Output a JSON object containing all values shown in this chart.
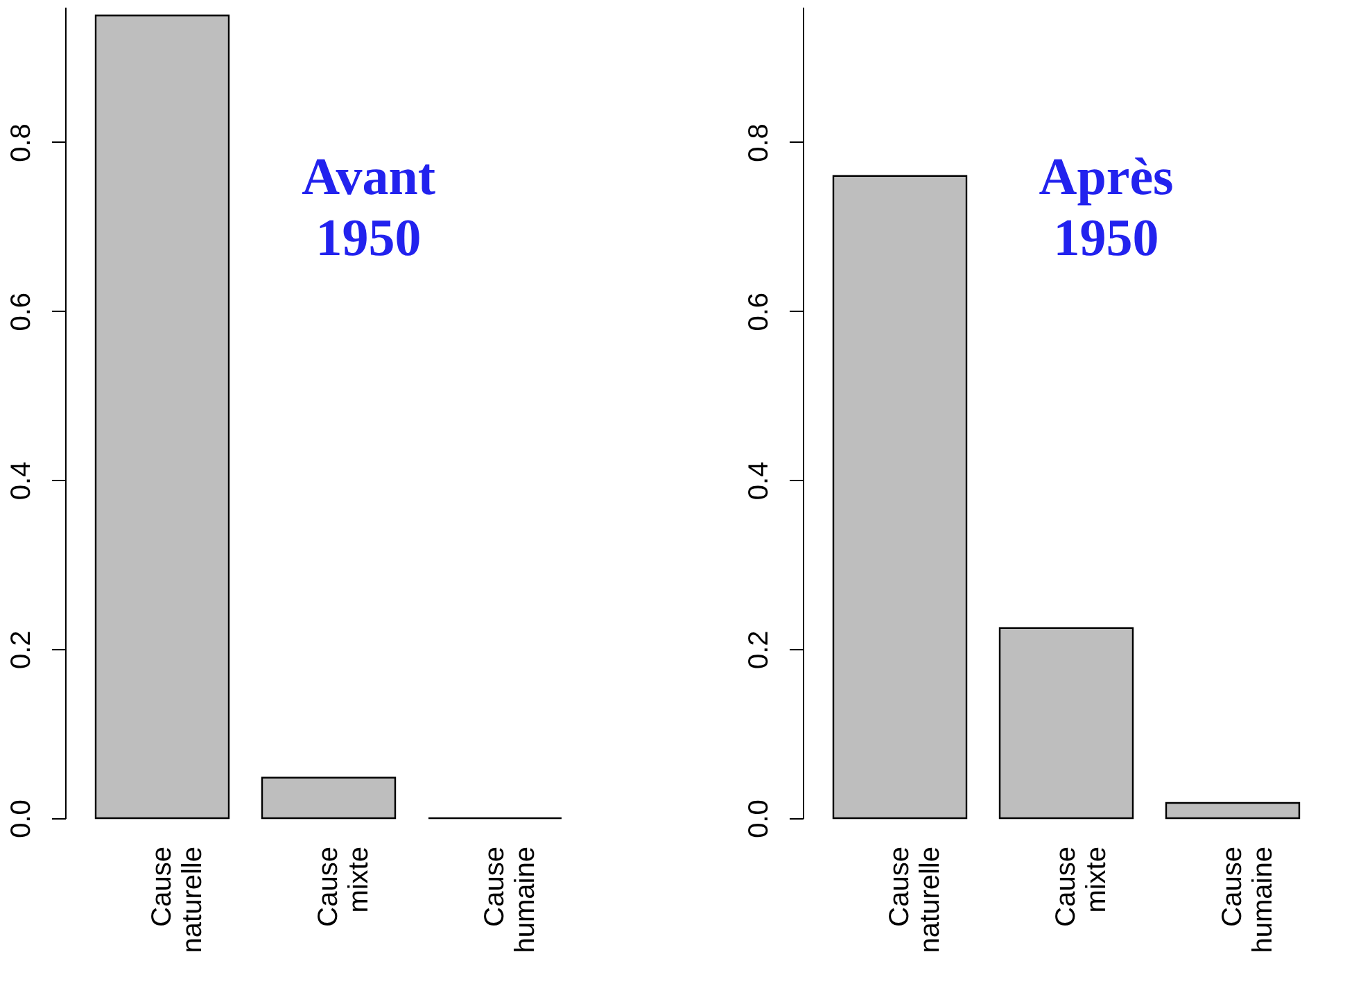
{
  "chart_data": [
    {
      "type": "bar",
      "categories": [
        "Cause naturelle",
        "Cause mixte",
        "Cause humaine"
      ],
      "values": [
        0.95,
        0.048,
        0.0
      ],
      "color": "#bebebe",
      "ylim": [
        0,
        0.96
      ],
      "yticks": [
        {
          "value": 0,
          "label": "0.0"
        },
        0.2,
        0.4,
        0.6,
        0.8
      ],
      "annotations": [
        "Avant 1950"
      ],
      "grid": false
    },
    {
      "type": "bar",
      "categories": [
        "Cause naturelle",
        "Cause mixte",
        "Cause humaine"
      ],
      "values": [
        0.76,
        0.225,
        0.018
      ],
      "color": "#bebebe",
      "ylim": [
        0,
        0.96
      ],
      "yticks": [
        {
          "value": 0,
          "label": "0.0"
        },
        0.2,
        0.4,
        0.6,
        0.8
      ],
      "annotations": [
        "Après 1950"
      ],
      "grid": false
    }
  ]
}
